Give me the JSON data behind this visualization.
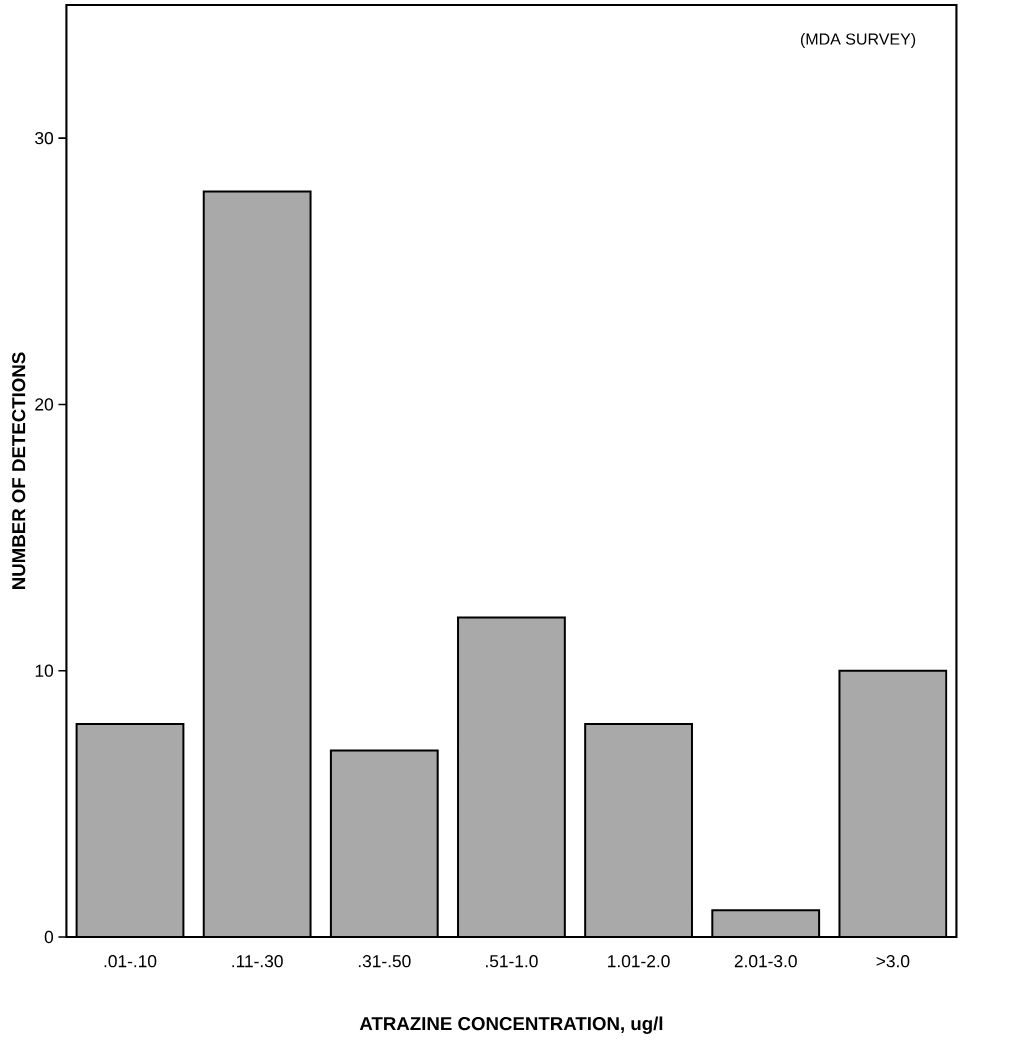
{
  "chart_data": {
    "type": "bar",
    "xlabel": "ATRAZINE CONCENTRATION, ug/l",
    "ylabel": "NUMBER OF DETECTIONS",
    "categories": [
      ".01-.10",
      ".11-.30",
      ".31-.50",
      ".51-1.0",
      "1.01-2.0",
      "2.01-3.0",
      ">3.0"
    ],
    "values": [
      8,
      28,
      7,
      12,
      8,
      1,
      10
    ],
    "color": "#a9a9a9",
    "ylim": [
      0,
      35
    ],
    "yticks": [
      0,
      10,
      20,
      30
    ],
    "annotations": [
      "(MDA SURVEY)"
    ]
  }
}
